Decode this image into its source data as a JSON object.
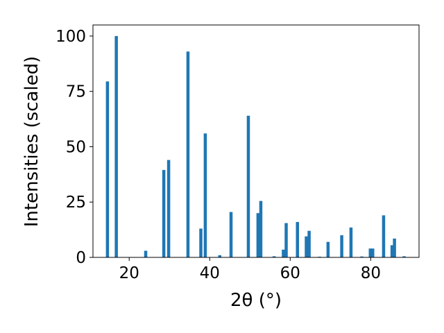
{
  "chart_data": {
    "type": "bar",
    "title": "",
    "xlabel": "2θ (°)",
    "ylabel": "Intensities (scaled)",
    "xlim": [
      11,
      92
    ],
    "ylim": [
      0,
      105
    ],
    "x_ticks": [
      20,
      40,
      60,
      80
    ],
    "y_ticks": [
      0,
      25,
      50,
      75,
      100
    ],
    "grid": false,
    "bar_color": "#1f77b4",
    "points": [
      {
        "x": 14.6,
        "y": 79.5
      },
      {
        "x": 16.8,
        "y": 100
      },
      {
        "x": 24.1,
        "y": 3
      },
      {
        "x": 28.6,
        "y": 39.5
      },
      {
        "x": 29.8,
        "y": 44
      },
      {
        "x": 34.6,
        "y": 93
      },
      {
        "x": 37.8,
        "y": 13
      },
      {
        "x": 38.9,
        "y": 56
      },
      {
        "x": 42.5,
        "y": 1
      },
      {
        "x": 45.3,
        "y": 20.5
      },
      {
        "x": 49.6,
        "y": 64
      },
      {
        "x": 52.0,
        "y": 20
      },
      {
        "x": 52.7,
        "y": 25.5
      },
      {
        "x": 56.0,
        "y": 0.5
      },
      {
        "x": 58.3,
        "y": 3.5
      },
      {
        "x": 59.0,
        "y": 15.5
      },
      {
        "x": 61.8,
        "y": 16
      },
      {
        "x": 64.0,
        "y": 9.5
      },
      {
        "x": 64.7,
        "y": 12
      },
      {
        "x": 67.3,
        "y": 0.3
      },
      {
        "x": 69.4,
        "y": 7
      },
      {
        "x": 72.8,
        "y": 10
      },
      {
        "x": 75.1,
        "y": 13.5
      },
      {
        "x": 77.8,
        "y": 0.4
      },
      {
        "x": 79.9,
        "y": 4
      },
      {
        "x": 80.5,
        "y": 4
      },
      {
        "x": 83.2,
        "y": 19
      },
      {
        "x": 85.3,
        "y": 5.5
      },
      {
        "x": 85.9,
        "y": 8.5
      },
      {
        "x": 88.3,
        "y": 0.5
      }
    ]
  }
}
